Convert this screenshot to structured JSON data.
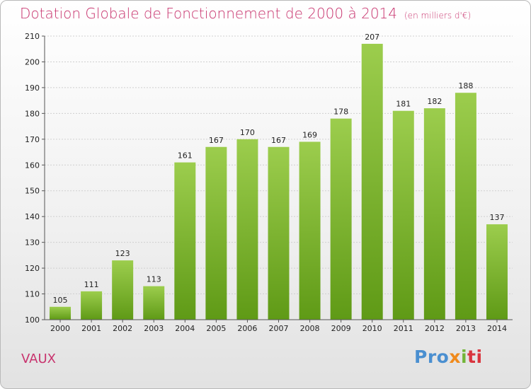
{
  "chart_data": {
    "type": "bar",
    "title": "Dotation Globale de Fonctionnement de 2000 à 2014",
    "unit_label": "(en milliers d'€)",
    "categories": [
      "2000",
      "2001",
      "2002",
      "2003",
      "2004",
      "2005",
      "2006",
      "2007",
      "2008",
      "2009",
      "2010",
      "2011",
      "2012",
      "2013",
      "2014"
    ],
    "values": [
      105,
      111,
      123,
      113,
      161,
      167,
      170,
      167,
      169,
      178,
      207,
      181,
      182,
      188,
      137
    ],
    "ylim": [
      100,
      210
    ],
    "yticks": [
      100,
      110,
      120,
      130,
      140,
      150,
      160,
      170,
      180,
      190,
      200,
      210
    ],
    "grid": true,
    "bar_color_top": "#9ccd4d",
    "bar_color_bottom": "#5f9a16"
  },
  "commune": "VAUX",
  "logo": {
    "p1": "Pro",
    "p2": "x",
    "p3": "i",
    "p4": "ti"
  }
}
